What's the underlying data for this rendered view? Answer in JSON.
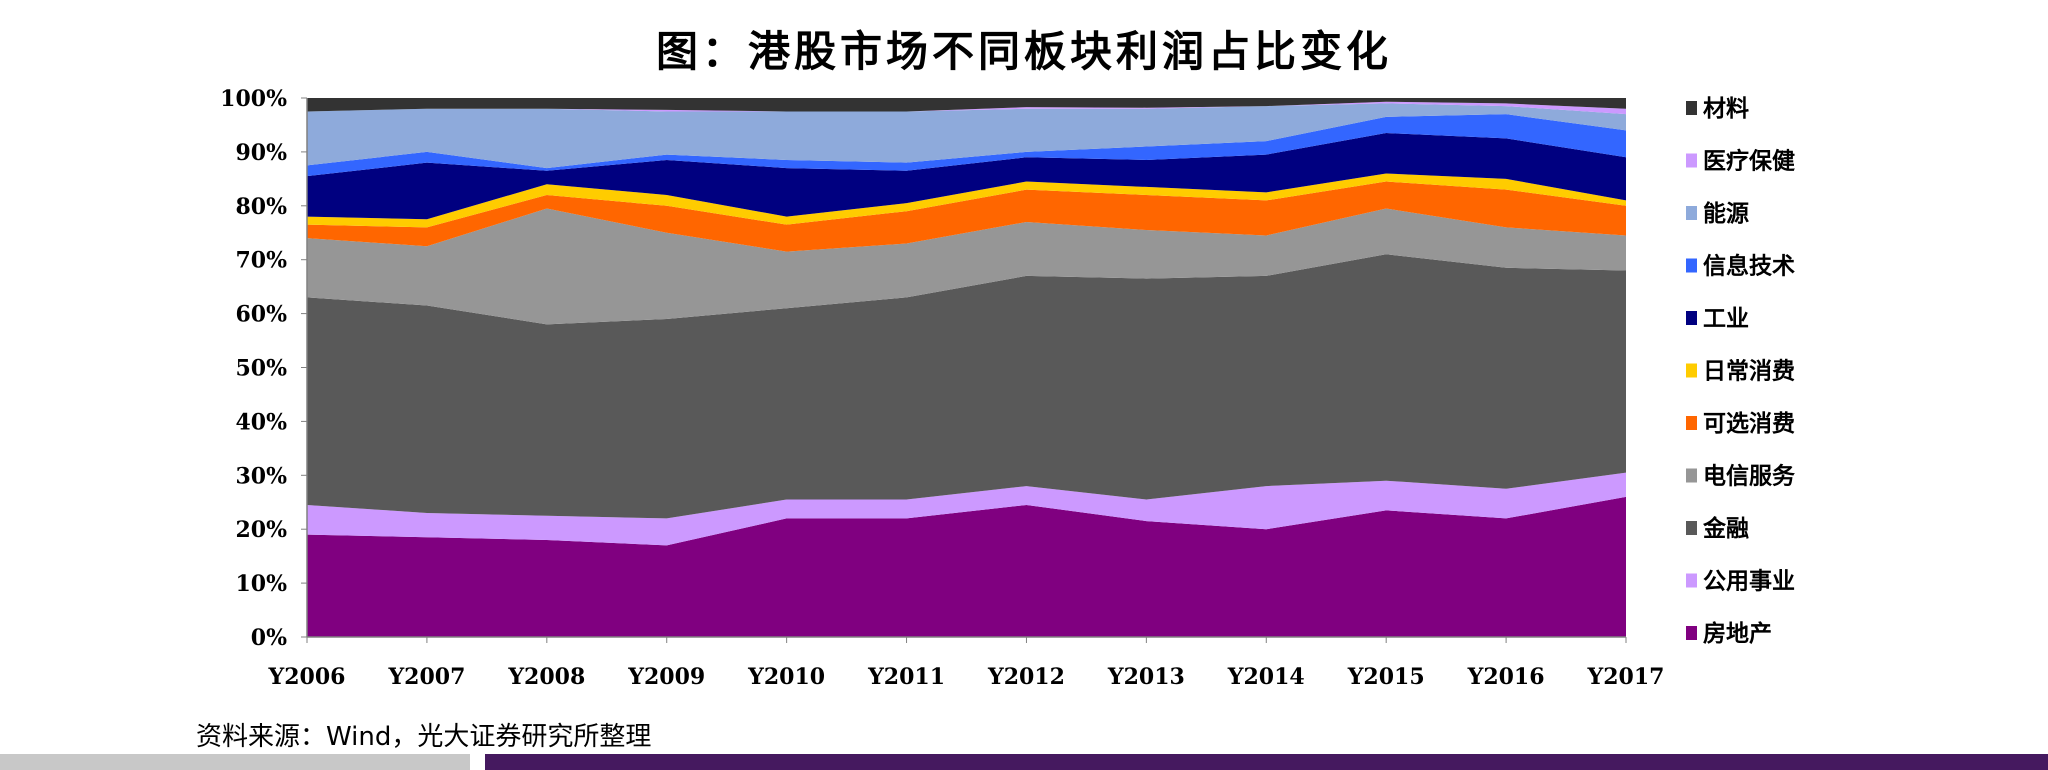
{
  "title": "图：港股市场不同板块利润占比变化",
  "source": "资料来源：Wind，光大证券研究所整理",
  "chart_data": {
    "type": "area",
    "stacked": true,
    "percent": true,
    "title": "图：港股市场不同板块利润占比变化",
    "xlabel": "",
    "ylabel": "",
    "ylim": [
      0,
      100
    ],
    "yticks": [
      "0%",
      "10%",
      "20%",
      "30%",
      "40%",
      "50%",
      "60%",
      "70%",
      "80%",
      "90%",
      "100%"
    ],
    "categories": [
      "Y2006",
      "Y2007",
      "Y2008",
      "Y2009",
      "Y2010",
      "Y2011",
      "Y2012",
      "Y2013",
      "Y2014",
      "Y2015",
      "Y2016",
      "Y2017"
    ],
    "legend_position": "right",
    "grid": false,
    "series": [
      {
        "name": "房地产",
        "color": "#800080",
        "values": [
          19,
          18.5,
          18,
          17,
          22,
          22,
          24.5,
          21.5,
          20,
          23.5,
          22,
          26
        ]
      },
      {
        "name": "公用事业",
        "color": "#cc99ff",
        "values": [
          5.5,
          4.5,
          4.5,
          5,
          3.5,
          3.5,
          3.5,
          4,
          8,
          5.5,
          5.5,
          4.5
        ]
      },
      {
        "name": "金融",
        "color": "#595959",
        "values": [
          38.5,
          38.5,
          35.5,
          37,
          35.5,
          37.5,
          39,
          41,
          39,
          42,
          41,
          37.5
        ]
      },
      {
        "name": "电信服务",
        "color": "#969696",
        "values": [
          11,
          11,
          21.5,
          16,
          10.5,
          10,
          10,
          9,
          7.5,
          8.5,
          7.5,
          6.5
        ]
      },
      {
        "name": "可选消费",
        "color": "#ff6600",
        "values": [
          2.5,
          3.5,
          2.5,
          5,
          5,
          6,
          6,
          6.5,
          6.5,
          5,
          7,
          5.5
        ]
      },
      {
        "name": "日常消费",
        "color": "#ffcc00",
        "values": [
          1.5,
          1.5,
          2,
          2,
          1.5,
          1.5,
          1.5,
          1.5,
          1.5,
          1.5,
          2,
          1
        ]
      },
      {
        "name": "工业",
        "color": "#000080",
        "values": [
          7.5,
          10.5,
          2.5,
          6.5,
          9,
          6,
          4.5,
          5,
          7,
          7.5,
          7.5,
          8
        ]
      },
      {
        "name": "信息技术",
        "color": "#3366ff",
        "values": [
          2,
          2,
          0.5,
          1,
          1.5,
          1.5,
          1,
          2.5,
          2.5,
          3,
          4.5,
          5
        ]
      },
      {
        "name": "能源",
        "color": "#8eaadb",
        "values": [
          10,
          8,
          11,
          8,
          9,
          9.5,
          8,
          7,
          6.5,
          2.5,
          1.5,
          3
        ]
      },
      {
        "name": "医疗保健",
        "color": "#cc99ff",
        "values": [
          0,
          0,
          0,
          0.3,
          0,
          0,
          0.3,
          0.2,
          0,
          0.3,
          0.5,
          1
        ]
      },
      {
        "name": "材料",
        "color": "#333333",
        "values": [
          2.5,
          2,
          2,
          2.2,
          2.5,
          2.5,
          1.7,
          1.8,
          1.5,
          0.7,
          1,
          2
        ]
      }
    ]
  }
}
